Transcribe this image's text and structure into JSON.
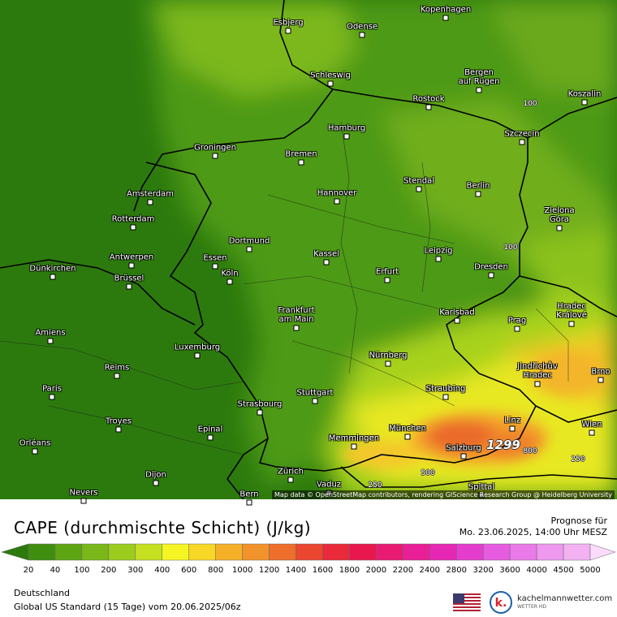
{
  "map": {
    "cities": [
      "Kopenhagen",
      "Esbjerg",
      "Odense",
      "Schleswig",
      "Bergen\nauf Rügen",
      "Rostock",
      "Koszalin",
      "Hamburg",
      "Szczecin",
      "Groningen",
      "Bremen",
      "Stendal",
      "Berlin",
      "Amsterdam",
      "Hannover",
      "Rotterdam",
      "Zielona\nGóra",
      "Dortmund",
      "Antwerpen",
      "Essen",
      "Kassel",
      "Leipzig",
      "Dünkirchen",
      "Köln",
      "Brüssel",
      "Erfurt",
      "Dresden",
      "Frankfurt\nam Main",
      "Karlsbad",
      "Hradec\nKrálové",
      "Prag",
      "Amiens",
      "Luxemburg",
      "Nürnberg",
      "Jindřichův\nHradec",
      "Brno",
      "Reims",
      "Paris",
      "Stuttgart",
      "Straubing",
      "Strasbourg",
      "Troyes",
      "Epinal",
      "Linz",
      "Wien",
      "München",
      "Memmingen",
      "Orléans",
      "Salzburg",
      "Dijon",
      "Zürich",
      "Vaduz",
      "Nevers",
      "Bern",
      "Spittal"
    ],
    "contour_labels": [
      "100",
      "100",
      "1299",
      "800",
      "500",
      "250",
      "250"
    ],
    "attribution": "Map data © OpenStreetMap contributors, rendering GIScience Research Group @ Heidelberg University"
  },
  "legend": {
    "title": "CAPE (durchmischte Schicht) (J/kg)",
    "values": [
      "20",
      "40",
      "100",
      "200",
      "300",
      "400",
      "600",
      "800",
      "1000",
      "1200",
      "1400",
      "1600",
      "1800",
      "2000",
      "2200",
      "2400",
      "2800",
      "3200",
      "3600",
      "4000",
      "4500",
      "5000"
    ],
    "colors": [
      "#2b7a0b",
      "#3f8e10",
      "#5ea514",
      "#7ab81a",
      "#9ccc1e",
      "#c4e021",
      "#f5f523",
      "#f8d826",
      "#f6b028",
      "#f2922a",
      "#ee6e2c",
      "#eb4630",
      "#ea2a3a",
      "#e8184e",
      "#e81a72",
      "#e81f96",
      "#e627b4",
      "#e43dce",
      "#e65ce0",
      "#e97ae8",
      "#ee98ee",
      "#f2b2f2",
      "#fadcfa"
    ]
  },
  "forecast": {
    "label": "Prognose für",
    "time": "Mo. 23.06.2025, 14:00 Uhr MESZ"
  },
  "footer": {
    "region": "Deutschland",
    "model": "Global US Standard (15 Tage)  vom  20.06.2025/06z"
  },
  "brand": {
    "name": "kachelmannwetter.com",
    "sub": "WETTER HD"
  }
}
